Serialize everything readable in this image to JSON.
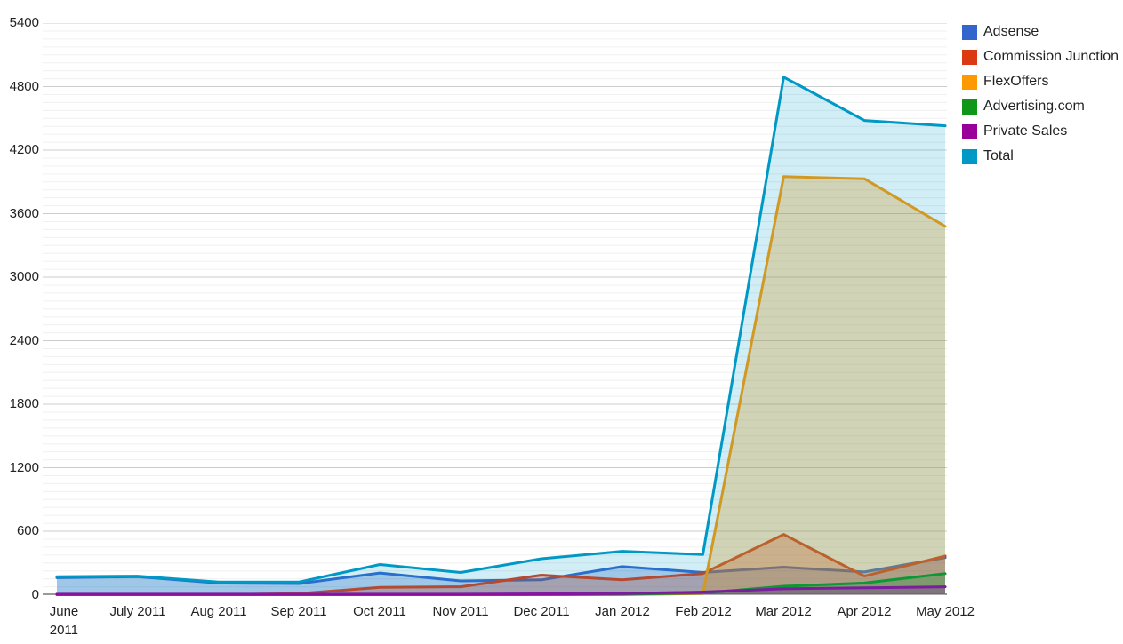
{
  "chart_data": {
    "type": "area",
    "title": "",
    "xlabel": "",
    "ylabel": "",
    "x": [
      "June 2011",
      "July 2011",
      "Aug 2011",
      "Sep 2011",
      "Oct 2011",
      "Nov 2011",
      "Dec 2011",
      "Jan 2012",
      "Feb 2012",
      "Mar 2012",
      "Apr 2012",
      "May 2012"
    ],
    "series": [
      {
        "name": "Adsense",
        "color": "#3366CC",
        "fill_opacity": 0.3,
        "values": [
          160,
          170,
          110,
          105,
          205,
          130,
          140,
          265,
          210,
          260,
          215,
          350
        ]
      },
      {
        "name": "Commission Junction",
        "color": "#DC3912",
        "fill_opacity": 0.3,
        "values": [
          0,
          0,
          0,
          10,
          70,
          75,
          185,
          140,
          200,
          570,
          175,
          365
        ]
      },
      {
        "name": "FlexOffers",
        "color": "#FF9900",
        "fill_opacity": 0.3,
        "values": [
          0,
          0,
          0,
          0,
          0,
          0,
          0,
          0,
          10,
          3950,
          3930,
          3480
        ]
      },
      {
        "name": "Advertising.com",
        "color": "#109618",
        "fill_opacity": 0.3,
        "values": [
          0,
          0,
          0,
          0,
          0,
          0,
          0,
          5,
          15,
          80,
          110,
          200
        ]
      },
      {
        "name": "Private Sales",
        "color": "#990099",
        "fill_opacity": 0.3,
        "values": [
          5,
          5,
          5,
          5,
          5,
          5,
          8,
          10,
          25,
          55,
          65,
          75
        ]
      },
      {
        "name": "Total",
        "color": "#0099C6",
        "fill_opacity": 0.18,
        "values": [
          170,
          175,
          120,
          120,
          285,
          210,
          340,
          410,
          380,
          4890,
          4480,
          4430
        ]
      }
    ],
    "ylim": [
      0,
      5400
    ],
    "y_major_ticks": [
      0,
      600,
      1200,
      1800,
      2400,
      3000,
      3600,
      4200,
      4800,
      5400
    ],
    "y_tick_labels": [
      "0",
      "600",
      "1200",
      "1800",
      "2400",
      "3000",
      "3600",
      "4200",
      "4800",
      "5400"
    ],
    "y_minor_step": 75,
    "grid": true,
    "legend_position": "right",
    "line_width": 3
  },
  "colors": {
    "background": "#ffffff",
    "gridline_major": "#cccccc",
    "gridline_minor": "#f0f0f0",
    "baseline": "#333333",
    "axis_label": "#222222",
    "legend_label": "#222222"
  }
}
